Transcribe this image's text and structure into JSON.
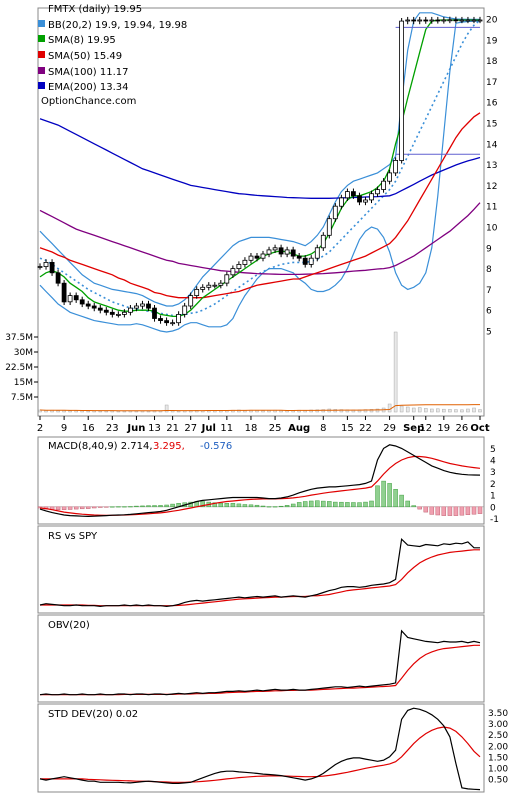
{
  "chart_data": {
    "type": "line",
    "symbol_label": "FMTX (daily) 19.95",
    "watermark": "OptionChance.com",
    "legend": [
      {
        "label": "BB(20,2) 19.9, 19.94, 19.98",
        "color": "#3a8fd8"
      },
      {
        "label": "SMA(8) 19.95",
        "color": "#00a000"
      },
      {
        "label": "SMA(50) 15.49",
        "color": "#e00000"
      },
      {
        "label": "SMA(100) 11.17",
        "color": "#800080"
      },
      {
        "label": "EMA(200) 13.34",
        "color": "#0000c0"
      }
    ],
    "x_ticks": [
      "2",
      "9",
      "16",
      "23",
      "Jun",
      "13",
      "21",
      "27",
      "Jul",
      "11",
      "18",
      "25",
      "Aug",
      "8",
      "15",
      "22",
      "29",
      "Sep",
      "12",
      "19",
      "26",
      "Oct"
    ],
    "y_ticks": [
      "20",
      "19",
      "18",
      "17",
      "16",
      "15",
      "14",
      "13",
      "12",
      "11",
      "10",
      "9",
      "8",
      "7",
      "6",
      "5"
    ],
    "ylim": [
      4.5,
      20.5
    ],
    "volume_ticks": [
      "37.5M",
      "30M",
      "22.5M",
      "15M",
      "7.5M"
    ],
    "price_close": [
      8.1,
      8.3,
      7.8,
      7.3,
      6.4,
      6.7,
      6.5,
      6.3,
      6.2,
      6.1,
      6.0,
      5.9,
      5.8,
      5.8,
      5.9,
      6.1,
      6.2,
      6.3,
      6.1,
      5.6,
      5.5,
      5.4,
      5.4,
      5.8,
      6.2,
      6.7,
      7.0,
      7.1,
      7.2,
      7.2,
      7.3,
      7.7,
      8.0,
      8.2,
      8.4,
      8.6,
      8.5,
      8.7,
      8.9,
      9.0,
      8.7,
      8.9,
      8.6,
      8.5,
      8.2,
      8.5,
      9.0,
      9.6,
      10.4,
      11.0,
      11.4,
      11.7,
      11.5,
      11.2,
      11.3,
      11.6,
      11.8,
      12.2,
      12.6,
      13.2,
      19.9,
      19.95,
      19.9,
      19.95,
      19.92,
      19.95,
      19.93,
      19.95,
      19.96,
      19.95,
      19.95,
      19.95,
      19.95,
      19.95
    ],
    "sma8": [
      7.6,
      7.8,
      7.9,
      7.8,
      7.6,
      7.3,
      7.1,
      6.9,
      6.6,
      6.4,
      6.3,
      6.2,
      6.1,
      6.0,
      5.95,
      5.95,
      6.0,
      6.0,
      6.0,
      5.95,
      5.8,
      5.75,
      5.7,
      5.7,
      5.8,
      6.0,
      6.3,
      6.6,
      6.8,
      7.0,
      7.2,
      7.4,
      7.6,
      7.8,
      8.0,
      8.2,
      8.4,
      8.6,
      8.7,
      8.8,
      8.85,
      8.8,
      8.7,
      8.6,
      8.6,
      8.7,
      8.9,
      9.2,
      9.7,
      10.3,
      10.9,
      11.3,
      11.5,
      11.5,
      11.6,
      11.7,
      11.9,
      12.2,
      12.8,
      14.0,
      15.0,
      16.2,
      17.3,
      18.4,
      19.5,
      19.9,
      19.94,
      19.95,
      19.95,
      19.95,
      19.95,
      19.95,
      19.95,
      19.95
    ],
    "sma50": [
      9.0,
      8.9,
      8.8,
      8.65,
      8.55,
      8.4,
      8.3,
      8.2,
      8.1,
      8.0,
      7.9,
      7.8,
      7.7,
      7.55,
      7.45,
      7.3,
      7.2,
      7.1,
      7.0,
      6.85,
      6.8,
      6.7,
      6.65,
      6.6,
      6.6,
      6.6,
      6.6,
      6.6,
      6.65,
      6.7,
      6.75,
      6.8,
      6.85,
      6.9,
      7.0,
      7.1,
      7.2,
      7.25,
      7.3,
      7.35,
      7.4,
      7.45,
      7.5,
      7.5,
      7.6,
      7.7,
      7.8,
      7.9,
      8.0,
      8.1,
      8.2,
      8.3,
      8.4,
      8.5,
      8.6,
      8.75,
      8.9,
      9.05,
      9.2,
      9.5,
      9.9,
      10.3,
      10.8,
      11.3,
      11.8,
      12.3,
      12.8,
      13.3,
      13.8,
      14.3,
      14.7,
      15.0,
      15.3,
      15.49
    ],
    "sma100": [
      10.8,
      10.65,
      10.5,
      10.35,
      10.2,
      10.05,
      9.9,
      9.8,
      9.7,
      9.6,
      9.5,
      9.4,
      9.3,
      9.2,
      9.1,
      9.0,
      8.9,
      8.8,
      8.7,
      8.6,
      8.5,
      8.4,
      8.35,
      8.25,
      8.2,
      8.15,
      8.1,
      8.05,
      8.0,
      7.95,
      7.9,
      7.88,
      7.85,
      7.82,
      7.8,
      7.78,
      7.76,
      7.75,
      7.74,
      7.73,
      7.72,
      7.72,
      7.72,
      7.72,
      7.73,
      7.74,
      7.75,
      7.76,
      7.78,
      7.8,
      7.82,
      7.85,
      7.88,
      7.9,
      7.92,
      7.95,
      7.98,
      8.0,
      8.05,
      8.15,
      8.3,
      8.45,
      8.6,
      8.8,
      9.0,
      9.2,
      9.4,
      9.6,
      9.8,
      10.05,
      10.3,
      10.55,
      10.85,
      11.17
    ],
    "ema200": [
      15.2,
      15.1,
      15.0,
      14.9,
      14.75,
      14.6,
      14.45,
      14.3,
      14.15,
      14.0,
      13.85,
      13.7,
      13.55,
      13.4,
      13.25,
      13.1,
      12.95,
      12.8,
      12.7,
      12.6,
      12.5,
      12.4,
      12.3,
      12.2,
      12.1,
      12.0,
      11.95,
      11.9,
      11.85,
      11.8,
      11.75,
      11.7,
      11.65,
      11.6,
      11.58,
      11.55,
      11.52,
      11.5,
      11.48,
      11.46,
      11.44,
      11.42,
      11.41,
      11.4,
      11.39,
      11.38,
      11.38,
      11.38,
      11.38,
      11.39,
      11.4,
      11.41,
      11.42,
      11.43,
      11.44,
      11.45,
      11.46,
      11.48,
      11.5,
      11.6,
      11.75,
      11.9,
      12.05,
      12.2,
      12.35,
      12.5,
      12.62,
      12.74,
      12.86,
      12.98,
      13.08,
      13.18,
      13.26,
      13.34
    ],
    "bb_upper": [
      9.8,
      9.5,
      9.2,
      8.9,
      8.6,
      8.3,
      8.0,
      7.7,
      7.5,
      7.3,
      7.2,
      7.1,
      7.0,
      6.95,
      6.9,
      6.85,
      6.8,
      6.7,
      6.55,
      6.4,
      6.3,
      6.2,
      6.2,
      6.3,
      6.5,
      6.8,
      7.2,
      7.6,
      7.9,
      8.2,
      8.5,
      8.8,
      9.1,
      9.3,
      9.4,
      9.5,
      9.5,
      9.5,
      9.5,
      9.45,
      9.4,
      9.35,
      9.3,
      9.2,
      9.1,
      9.3,
      9.6,
      10.0,
      10.6,
      11.2,
      11.7,
      12.0,
      12.2,
      12.3,
      12.4,
      12.5,
      12.6,
      12.8,
      13.0,
      13.4,
      16.0,
      18.5,
      19.9,
      20.3,
      20.3,
      20.3,
      20.2,
      20.1,
      20.05,
      20.0,
      19.99,
      19.98,
      19.98,
      19.98
    ],
    "bb_lower": [
      7.2,
      6.9,
      6.6,
      6.3,
      6.1,
      5.9,
      5.8,
      5.7,
      5.6,
      5.5,
      5.45,
      5.4,
      5.35,
      5.3,
      5.3,
      5.3,
      5.35,
      5.3,
      5.2,
      5.1,
      5.0,
      4.95,
      5.0,
      5.1,
      5.3,
      5.4,
      5.4,
      5.3,
      5.2,
      5.2,
      5.2,
      5.3,
      5.6,
      6.2,
      6.7,
      7.1,
      7.5,
      7.8,
      8.0,
      8.0,
      8.0,
      7.9,
      7.8,
      7.5,
      7.3,
      7.0,
      6.9,
      6.9,
      7.0,
      7.2,
      7.5,
      8.0,
      8.7,
      9.4,
      9.8,
      10.0,
      9.9,
      9.5,
      8.8,
      7.8,
      7.2,
      7.0,
      7.1,
      7.3,
      7.8,
      9.0,
      11.5,
      14.5,
      17.5,
      19.8,
      19.85,
      19.88,
      19.9,
      19.9
    ],
    "bb_mid": [
      8.5,
      8.4,
      8.2,
      8.0,
      7.8,
      7.6,
      7.4,
      7.2,
      7.0,
      6.85,
      6.7,
      6.55,
      6.4,
      6.3,
      6.2,
      6.1,
      6.05,
      6.0,
      5.95,
      5.9,
      5.85,
      5.8,
      5.75,
      5.75,
      5.8,
      5.85,
      5.9,
      6.0,
      6.15,
      6.3,
      6.5,
      6.7,
      6.9,
      7.1,
      7.3,
      7.5,
      7.7,
      7.85,
      8.0,
      8.1,
      8.2,
      8.25,
      8.3,
      8.3,
      8.3,
      8.35,
      8.45,
      8.6,
      8.8,
      9.1,
      9.4,
      9.7,
      10.0,
      10.3,
      10.6,
      10.9,
      11.2,
      11.5,
      11.8,
      12.2,
      12.8,
      13.4,
      14.0,
      14.6,
      15.2,
      15.8,
      16.4,
      17.0,
      17.6,
      18.2,
      18.8,
      19.3,
      19.7,
      19.94
    ],
    "volume_millions": [
      1,
      0.8,
      0.9,
      0.7,
      0.8,
      0.6,
      0.7,
      0.6,
      0.5,
      0.6,
      0.5,
      0.5,
      0.6,
      0.5,
      0.5,
      0.6,
      0.5,
      0.6,
      0.5,
      0.7,
      0.6,
      3.5,
      0.6,
      0.5,
      0.6,
      0.7,
      0.8,
      0.6,
      0.7,
      0.6,
      0.7,
      0.8,
      0.9,
      1,
      0.8,
      0.9,
      0.8,
      0.7,
      0.8,
      0.9,
      0.8,
      0.7,
      0.8,
      0.9,
      0.8,
      1,
      1.1,
      1.2,
      1.5,
      1.3,
      1.2,
      1.1,
      1,
      1.1,
      1.2,
      1.3,
      1.5,
      2,
      4,
      40,
      3,
      2.5,
      2,
      2.2,
      1.8,
      1.5,
      1.6,
      1.4,
      1.3,
      1.2,
      1.1,
      1.5,
      2,
      1.2
    ],
    "macd": {
      "label": "MACD(8,40,9) 2.714,",
      "signal_label": "3.295,",
      "hist_label": "-0.576",
      "y_ticks": [
        "5",
        "4",
        "3",
        "2",
        "1",
        "0",
        "-1"
      ],
      "macd_line": [
        -0.2,
        -0.35,
        -0.5,
        -0.6,
        -0.7,
        -0.75,
        -0.78,
        -0.8,
        -0.82,
        -0.8,
        -0.78,
        -0.75,
        -0.72,
        -0.7,
        -0.68,
        -0.65,
        -0.6,
        -0.55,
        -0.5,
        -0.45,
        -0.4,
        -0.3,
        -0.15,
        0.0,
        0.15,
        0.3,
        0.45,
        0.55,
        0.6,
        0.65,
        0.7,
        0.75,
        0.8,
        0.8,
        0.8,
        0.8,
        0.8,
        0.75,
        0.7,
        0.7,
        0.75,
        0.85,
        1.0,
        1.2,
        1.35,
        1.5,
        1.6,
        1.65,
        1.7,
        1.7,
        1.75,
        1.8,
        1.85,
        1.9,
        2.0,
        2.2,
        4.0,
        5.0,
        5.3,
        5.2,
        5.0,
        4.7,
        4.4,
        4.1,
        3.8,
        3.5,
        3.3,
        3.1,
        2.95,
        2.85,
        2.78,
        2.74,
        2.72,
        2.714
      ],
      "signal_line": [
        -0.1,
        -0.15,
        -0.25,
        -0.35,
        -0.45,
        -0.52,
        -0.58,
        -0.63,
        -0.67,
        -0.7,
        -0.72,
        -0.73,
        -0.73,
        -0.72,
        -0.7,
        -0.68,
        -0.66,
        -0.63,
        -0.6,
        -0.56,
        -0.52,
        -0.45,
        -0.38,
        -0.3,
        -0.2,
        -0.1,
        0.0,
        0.1,
        0.2,
        0.3,
        0.38,
        0.45,
        0.5,
        0.55,
        0.6,
        0.63,
        0.66,
        0.68,
        0.68,
        0.68,
        0.7,
        0.72,
        0.76,
        0.82,
        0.9,
        1.0,
        1.08,
        1.16,
        1.24,
        1.3,
        1.36,
        1.42,
        1.48,
        1.54,
        1.6,
        1.7,
        2.2,
        2.8,
        3.3,
        3.7,
        4.0,
        4.2,
        4.3,
        4.3,
        4.25,
        4.15,
        4.0,
        3.85,
        3.7,
        3.6,
        3.5,
        3.42,
        3.35,
        3.295
      ],
      "ylim": [
        -1.3,
        5.8
      ]
    },
    "rs": {
      "label": "RS vs SPY",
      "ylim": [
        0,
        1.2
      ],
      "main": [
        0.06,
        0.08,
        0.07,
        0.06,
        0.05,
        0.05,
        0.06,
        0.05,
        0.05,
        0.05,
        0.04,
        0.05,
        0.05,
        0.05,
        0.06,
        0.05,
        0.06,
        0.05,
        0.06,
        0.05,
        0.05,
        0.04,
        0.05,
        0.07,
        0.1,
        0.12,
        0.13,
        0.12,
        0.13,
        0.14,
        0.15,
        0.16,
        0.17,
        0.18,
        0.17,
        0.18,
        0.19,
        0.18,
        0.19,
        0.2,
        0.18,
        0.19,
        0.2,
        0.19,
        0.18,
        0.2,
        0.22,
        0.25,
        0.28,
        0.3,
        0.33,
        0.34,
        0.34,
        0.33,
        0.34,
        0.36,
        0.37,
        0.38,
        0.4,
        0.45,
        1.06,
        0.97,
        0.96,
        0.95,
        0.98,
        0.97,
        0.96,
        0.99,
        0.98,
        1.0,
        0.99,
        1.02,
        0.93,
        0.93
      ],
      "avg": [
        0.06,
        0.06,
        0.06,
        0.06,
        0.06,
        0.06,
        0.06,
        0.06,
        0.055,
        0.055,
        0.05,
        0.05,
        0.05,
        0.05,
        0.05,
        0.05,
        0.05,
        0.05,
        0.05,
        0.05,
        0.05,
        0.05,
        0.05,
        0.055,
        0.06,
        0.07,
        0.08,
        0.09,
        0.1,
        0.11,
        0.12,
        0.13,
        0.14,
        0.15,
        0.155,
        0.16,
        0.165,
        0.17,
        0.175,
        0.18,
        0.18,
        0.185,
        0.19,
        0.19,
        0.19,
        0.2,
        0.2,
        0.21,
        0.22,
        0.24,
        0.26,
        0.28,
        0.29,
        0.3,
        0.31,
        0.32,
        0.33,
        0.34,
        0.35,
        0.37,
        0.45,
        0.55,
        0.63,
        0.7,
        0.75,
        0.79,
        0.82,
        0.84,
        0.86,
        0.87,
        0.88,
        0.89,
        0.9,
        0.9
      ]
    },
    "obv": {
      "label": "OBV(20)",
      "ylim": [
        0,
        1.2
      ],
      "main": [
        0.05,
        0.06,
        0.05,
        0.05,
        0.06,
        0.05,
        0.05,
        0.06,
        0.05,
        0.05,
        0.06,
        0.05,
        0.05,
        0.06,
        0.06,
        0.05,
        0.06,
        0.06,
        0.05,
        0.06,
        0.06,
        0.05,
        0.06,
        0.07,
        0.06,
        0.07,
        0.08,
        0.07,
        0.08,
        0.08,
        0.09,
        0.1,
        0.1,
        0.11,
        0.1,
        0.11,
        0.12,
        0.11,
        0.12,
        0.13,
        0.12,
        0.12,
        0.13,
        0.12,
        0.12,
        0.13,
        0.14,
        0.15,
        0.16,
        0.17,
        0.17,
        0.16,
        0.17,
        0.18,
        0.17,
        0.18,
        0.19,
        0.2,
        0.21,
        0.23,
        1.02,
        0.92,
        0.9,
        0.88,
        0.86,
        0.85,
        0.84,
        0.86,
        0.85,
        0.85,
        0.86,
        0.84,
        0.86,
        0.84
      ],
      "avg": [
        0.05,
        0.05,
        0.05,
        0.05,
        0.05,
        0.05,
        0.05,
        0.05,
        0.05,
        0.05,
        0.05,
        0.05,
        0.05,
        0.05,
        0.055,
        0.055,
        0.055,
        0.055,
        0.055,
        0.055,
        0.055,
        0.055,
        0.055,
        0.06,
        0.06,
        0.06,
        0.065,
        0.065,
        0.07,
        0.07,
        0.075,
        0.08,
        0.085,
        0.09,
        0.09,
        0.095,
        0.1,
        0.1,
        0.105,
        0.11,
        0.11,
        0.115,
        0.115,
        0.12,
        0.12,
        0.12,
        0.125,
        0.13,
        0.135,
        0.14,
        0.145,
        0.15,
        0.15,
        0.155,
        0.16,
        0.165,
        0.17,
        0.175,
        0.18,
        0.19,
        0.3,
        0.42,
        0.52,
        0.6,
        0.66,
        0.7,
        0.73,
        0.75,
        0.76,
        0.77,
        0.78,
        0.79,
        0.8,
        0.8
      ]
    },
    "std": {
      "label": "STD DEV(20) 0.02",
      "y_ticks": [
        "3.50",
        "3.00",
        "2.50",
        "2.00",
        "1.50",
        "1.00",
        "0.50"
      ],
      "ylim": [
        0,
        3.8
      ],
      "main": [
        0.5,
        0.45,
        0.5,
        0.55,
        0.6,
        0.55,
        0.5,
        0.45,
        0.4,
        0.4,
        0.35,
        0.35,
        0.35,
        0.35,
        0.33,
        0.32,
        0.35,
        0.38,
        0.4,
        0.38,
        0.35,
        0.32,
        0.3,
        0.3,
        0.32,
        0.35,
        0.45,
        0.55,
        0.65,
        0.75,
        0.82,
        0.85,
        0.85,
        0.82,
        0.8,
        0.78,
        0.75,
        0.72,
        0.7,
        0.68,
        0.65,
        0.6,
        0.55,
        0.5,
        0.45,
        0.5,
        0.6,
        0.75,
        0.95,
        1.15,
        1.3,
        1.4,
        1.45,
        1.45,
        1.4,
        1.35,
        1.3,
        1.35,
        1.5,
        1.8,
        3.2,
        3.6,
        3.7,
        3.65,
        3.55,
        3.4,
        3.2,
        2.9,
        2.4,
        1.2,
        0.1,
        0.05,
        0.03,
        0.02
      ],
      "avg": [
        0.5,
        0.5,
        0.5,
        0.5,
        0.5,
        0.5,
        0.5,
        0.5,
        0.48,
        0.47,
        0.46,
        0.45,
        0.44,
        0.43,
        0.42,
        0.41,
        0.4,
        0.4,
        0.39,
        0.38,
        0.37,
        0.36,
        0.35,
        0.35,
        0.35,
        0.36,
        0.37,
        0.39,
        0.41,
        0.44,
        0.47,
        0.5,
        0.53,
        0.56,
        0.58,
        0.6,
        0.62,
        0.63,
        0.64,
        0.64,
        0.64,
        0.63,
        0.62,
        0.61,
        0.6,
        0.6,
        0.61,
        0.63,
        0.66,
        0.7,
        0.75,
        0.8,
        0.86,
        0.92,
        0.98,
        1.03,
        1.08,
        1.12,
        1.18,
        1.28,
        1.5,
        1.8,
        2.1,
        2.35,
        2.55,
        2.7,
        2.8,
        2.85,
        2.8,
        2.65,
        2.4,
        2.1,
        1.75,
        1.5
      ]
    }
  }
}
